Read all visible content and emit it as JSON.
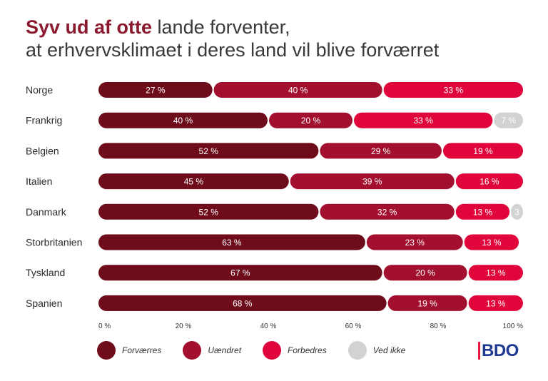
{
  "title": {
    "highlight": "Syv ud af otte",
    "line1_rest": " lande forventer,",
    "line2": "at erhvervsklimaet i deres land vil blive forværret"
  },
  "colors": {
    "forvaerres": "#6e0c1c",
    "uaendret": "#a3102f",
    "forbedres": "#e0063c",
    "ved_ikke": "#d2d2d2",
    "logo_text": "#1f3a93",
    "logo_bar": "#e41b3a"
  },
  "legend": [
    {
      "label": "Forværres",
      "color": "#6e0c1c"
    },
    {
      "label": "Uændret",
      "color": "#a3102f"
    },
    {
      "label": "Forbedres",
      "color": "#e0063c"
    },
    {
      "label": "Ved ikke",
      "color": "#d2d2d2"
    }
  ],
  "logo": {
    "text": "BDO"
  },
  "chart_data": {
    "type": "bar",
    "orientation": "horizontal",
    "stacked": true,
    "percent_stacked": true,
    "categories": [
      "Norge",
      "Frankrig",
      "Belgien",
      "Italien",
      "Danmark",
      "Storbritanien",
      "Tyskland",
      "Spanien"
    ],
    "series": [
      {
        "name": "Forværres",
        "values": [
          27,
          40,
          52,
          45,
          52,
          63,
          67,
          68
        ],
        "labels": [
          "27 %",
          "40 %",
          "52 %",
          "45 %",
          "52 %",
          "63 %",
          "67 %",
          "68 %"
        ]
      },
      {
        "name": "Uændret",
        "values": [
          40,
          20,
          29,
          39,
          32,
          23,
          20,
          19
        ],
        "labels": [
          "40 %",
          "20 %",
          "29 %",
          "39 %",
          "32 %",
          "23 %",
          "20 %",
          "19 %"
        ]
      },
      {
        "name": "Forbedres",
        "values": [
          33,
          33,
          19,
          16,
          13,
          13,
          13,
          13
        ],
        "labels": [
          "33 %",
          "33 %",
          "19 %",
          "16 %",
          "13 %",
          "13 %",
          "13 %",
          "13 %"
        ]
      },
      {
        "name": "Ved ikke",
        "values": [
          0,
          7,
          0,
          0,
          3,
          0,
          0,
          0
        ],
        "labels": [
          "",
          "7 %",
          "",
          "",
          "3",
          "",
          "",
          ""
        ]
      }
    ],
    "xlim": [
      0,
      100
    ],
    "xticks": [
      {
        "value": 0,
        "label": "0 %"
      },
      {
        "value": 20,
        "label": "20 %"
      },
      {
        "value": 40,
        "label": "40 %"
      },
      {
        "value": 60,
        "label": "60 %"
      },
      {
        "value": 80,
        "label": "80 %"
      },
      {
        "value": 100,
        "label": "100 %"
      }
    ],
    "grid": false,
    "legend_position": "bottom"
  }
}
